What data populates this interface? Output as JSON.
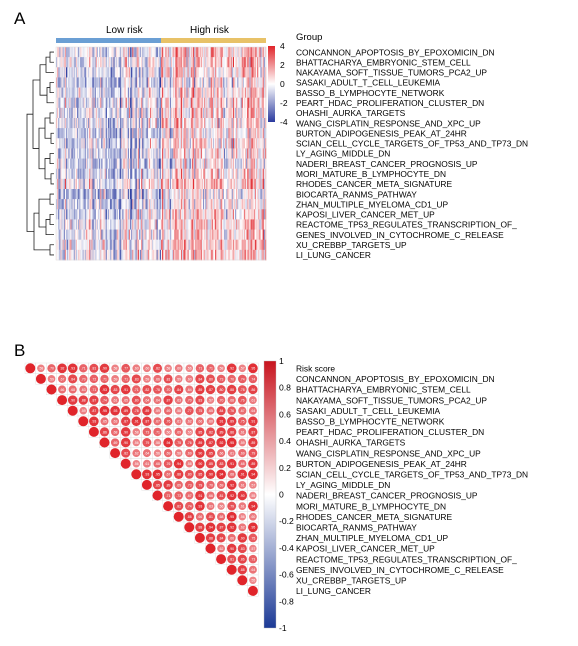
{
  "panels": {
    "a_label": "A",
    "b_label": "B"
  },
  "pathways": [
    "CONCANNON_APOPTOSIS_BY_EPOXOMICIN_DN",
    "BHATTACHARYA_EMBRYONIC_STEM_CELL",
    "NAKAYAMA_SOFT_TISSUE_TUMORS_PCA2_UP",
    "SASAKI_ADULT_T_CELL_LEUKEMIA",
    "BASSO_B_LYMPHOCYTE_NETWORK",
    "PEART_HDAC_PROLIFERATION_CLUSTER_DN",
    "OHASHI_AURKA_TARGETS",
    "WANG_CISPLATIN_RESPONSE_AND_XPC_UP",
    "BURTON_ADIPOGENESIS_PEAK_AT_24HR",
    "SCIAN_CELL_CYCLE_TARGETS_OF_TP53_AND_TP73_DN",
    "LY_AGING_MIDDLE_DN",
    "NADERI_BREAST_CANCER_PROGNOSIS_UP",
    "MORI_MATURE_B_LYMPHOCYTE_DN",
    "RHODES_CANCER_META_SIGNATURE",
    "BIOCARTA_RANMS_PATHWAY",
    "ZHAN_MULTIPLE_MYELOMA_CD1_UP",
    "KAPOSI_LIVER_CANCER_MET_UP",
    "REACTOME_TP53_REGULATES_TRANSCRIPTION_OF_",
    "GENES_INVOLVED_IN_CYTOCHROME_C_RELEASE",
    "XU_CREBBP_TARGETS_UP",
    "LI_LUNG_CANCER"
  ],
  "colors": {
    "low_risk": "#6b9fd4",
    "high_risk": "#e8c268",
    "neg": "#2a3a9e",
    "zero": "#ffffff",
    "pos": "#e0242a"
  },
  "chart_data": [
    {
      "type": "heatmap",
      "title": "",
      "group_legend_title": "Group",
      "groups": [
        {
          "name": "Low risk",
          "share": 0.5
        },
        {
          "name": "High risk",
          "share": 0.5
        }
      ],
      "color_scale": {
        "min": -4,
        "max": 4,
        "ticks": [
          4,
          2,
          0,
          -2,
          -4
        ]
      },
      "rows_ref": "pathways",
      "pattern": {
        "low_risk_mean": -0.5,
        "high_risk_mean": 0.9
      }
    },
    {
      "type": "heatmap",
      "subtype": "correlation-triangle",
      "title": "",
      "variables": [
        "Risk score",
        "CONCANNON_APOPTOSIS_BY_EPOXOMICIN_DN",
        "BHATTACHARYA_EMBRYONIC_STEM_CELL",
        "NAKAYAMA_SOFT_TISSUE_TUMORS_PCA2_UP",
        "SASAKI_ADULT_T_CELL_LEUKEMIA",
        "BASSO_B_LYMPHOCYTE_NETWORK",
        "PEART_HDAC_PROLIFERATION_CLUSTER_DN",
        "OHASHI_AURKA_TARGETS",
        "WANG_CISPLATIN_RESPONSE_AND_XPC_UP",
        "BURTON_ADIPOGENESIS_PEAK_AT_24HR",
        "SCIAN_CELL_CYCLE_TARGETS_OF_TP53_AND_TP73_DN",
        "LY_AGING_MIDDLE_DN",
        "NADERI_BREAST_CANCER_PROGNOSIS_UP",
        "MORI_MATURE_B_LYMPHOCYTE_DN",
        "RHODES_CANCER_META_SIGNATURE",
        "BIOCARTA_RANMS_PATHWAY",
        "ZHAN_MULTIPLE_MYELOMA_CD1_UP",
        "KAPOSI_LIVER_CANCER_MET_UP",
        "REACTOME_TP53_REGULATES_TRANSCRIPTION_OF_",
        "GENES_INVOLVED_IN_CYTOCHROME_C_RELEASE",
        "XU_CREBBP_TARGETS_UP",
        "LI_LUNG_CANCER"
      ],
      "color_scale": {
        "min": -1,
        "max": 1,
        "ticks": [
          1,
          0.8,
          0.6,
          0.4,
          0.2,
          0,
          -0.2,
          -0.4,
          -0.6,
          -0.8,
          -1
        ]
      },
      "diagonal_value": 1,
      "off_diagonal_range": [
        0.55,
        0.95
      ]
    }
  ]
}
